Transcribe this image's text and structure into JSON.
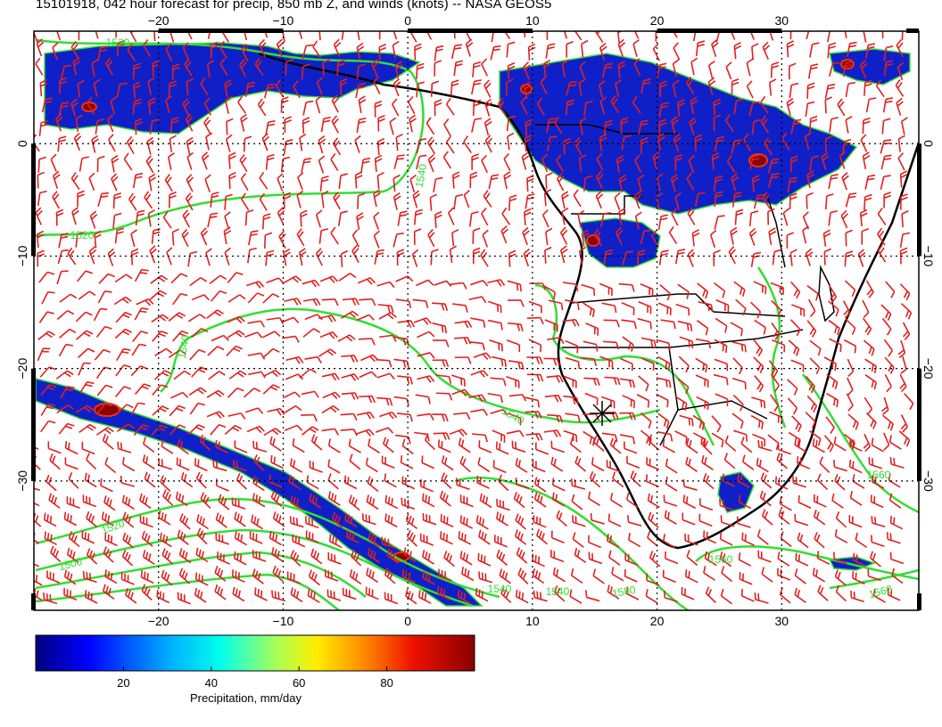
{
  "title": "15101918, 042 hour forecast for precip, 850 mb Z, and winds (knots) -- NASA GEOS5",
  "map": {
    "lon_ticks": [
      "−20",
      "−10",
      "0",
      "10",
      "20",
      "30"
    ],
    "lat_ticks": [
      "0",
      "−10",
      "−20",
      "−30"
    ],
    "lon_values": [
      -20,
      -10,
      0,
      10,
      20,
      30
    ],
    "lat_values": [
      0,
      -10,
      -20,
      -30
    ],
    "lon_range": [
      -30,
      41
    ],
    "lat_range": [
      10,
      -41.5
    ],
    "contour_labels": [
      "1520",
      "1520",
      "1540",
      "1540",
      "1520",
      "1500",
      "1540",
      "1540",
      "1540",
      "1580",
      "1560",
      "1560",
      "1560"
    ],
    "colors": {
      "precip_light": "#1020c8",
      "precip_heavy": "#8b0000",
      "contour": "#33dd33",
      "wind_barb": "#e02020",
      "coast": "#000000"
    },
    "wind_barbs_icon": "wind-barb-icon",
    "station_marker_icon": "asterisk-marker-icon"
  },
  "colorbar": {
    "label": "Precipitation, mm/day",
    "ticks": [
      "20",
      "40",
      "60",
      "80"
    ],
    "tick_values": [
      20,
      40,
      60,
      80
    ],
    "range": [
      0,
      100
    ],
    "colors": [
      "#000080",
      "#0000ff",
      "#00aaff",
      "#00ffee",
      "#aaff55",
      "#ffee00",
      "#ff8800",
      "#ee1100",
      "#880000"
    ]
  }
}
